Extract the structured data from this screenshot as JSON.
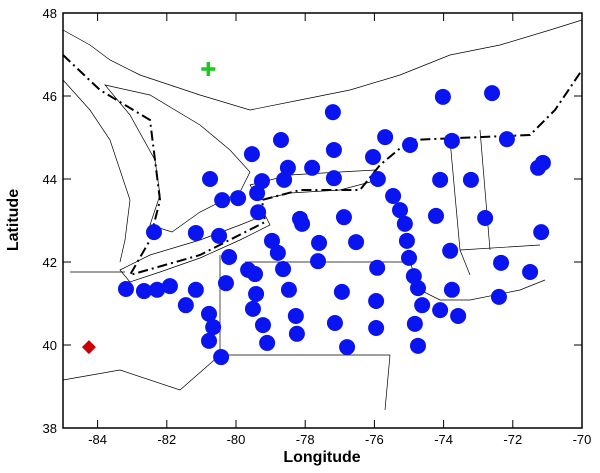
{
  "chart_data": {
    "type": "scatter",
    "x_label": "Longitude",
    "y_label": "Latitude",
    "xlim": [
      -85,
      -70
    ],
    "ylim": [
      38,
      48
    ],
    "xticks": [
      -84,
      -82,
      -80,
      -78,
      -76,
      -74,
      -72,
      -70
    ],
    "yticks": [
      38,
      40,
      42,
      44,
      46,
      48
    ],
    "series": [
      {
        "color": "#0a14f0",
        "x": [
          -77.2,
          -74.02,
          -72.6,
          -78.7,
          -77.17,
          -75.69,
          -74.97,
          -73.76,
          -72.17,
          -79.54,
          -78.5,
          -77.8,
          -77.17,
          -76.04,
          -75.9,
          -80.75,
          -79.25,
          -78.61,
          -74.1,
          -73.21,
          -71.13,
          -71.27,
          -80.4,
          -79.94,
          -79.39,
          -75.46,
          -75.26,
          -72.8,
          -79.36,
          -78.15,
          -76.88,
          -75.12,
          -74.22,
          -82.37,
          -81.16,
          -80.49,
          -75.06,
          -73.81,
          -71.18,
          -78.96,
          -78.09,
          -77.6,
          -76.53,
          -75.0,
          -80.2,
          -79.65,
          -78.79,
          -77.63,
          -72.34,
          -79.45,
          -78.64,
          -75.92,
          -74.86,
          -71.5,
          -74.74,
          -74.62,
          -73.76,
          -83.18,
          -82.66,
          -82.28,
          -81.91,
          -81.16,
          -80.29,
          -79.42,
          -81.45,
          -80.78,
          -79.51,
          -78.47,
          -76.94,
          -75.95,
          -72.4,
          -74.83,
          -74.1,
          -73.58,
          -74.74,
          -80.66,
          -79.22,
          -78.27,
          -77.14,
          -75.95,
          -80.78,
          -79.1,
          -78.24,
          -76.79,
          -80.43
        ],
        "values": [
          45.61,
          45.98,
          46.07,
          44.94,
          44.7,
          45.01,
          44.82,
          44.92,
          44.96,
          44.6,
          44.27,
          44.27,
          44.02,
          44.53,
          44.0,
          44.0,
          43.95,
          43.98,
          43.98,
          43.98,
          44.39,
          44.27,
          43.49,
          43.54,
          43.66,
          43.59,
          43.25,
          43.06,
          43.2,
          43.04,
          43.08,
          42.92,
          43.11,
          42.72,
          42.7,
          42.63,
          42.51,
          42.27,
          42.72,
          42.51,
          42.92,
          42.46,
          42.48,
          42.1,
          42.12,
          41.81,
          42.22,
          42.02,
          41.98,
          41.71,
          41.83,
          41.86,
          41.66,
          41.76,
          41.37,
          40.96,
          41.33,
          41.35,
          41.3,
          41.33,
          41.42,
          41.33,
          41.49,
          41.23,
          40.96,
          40.75,
          40.87,
          41.33,
          41.28,
          41.06,
          41.16,
          40.51,
          40.84,
          40.7,
          39.98,
          40.43,
          40.48,
          40.7,
          40.53,
          40.41,
          40.1,
          40.05,
          40.27,
          39.95,
          39.71
        ]
      }
    ],
    "markers": [
      {
        "shape": "cross",
        "color": "#1ec81e",
        "x": -80.8,
        "y": 46.65
      },
      {
        "shape": "diamond",
        "color": "#c80000",
        "x": -84.25,
        "y": 39.95
      }
    ]
  }
}
